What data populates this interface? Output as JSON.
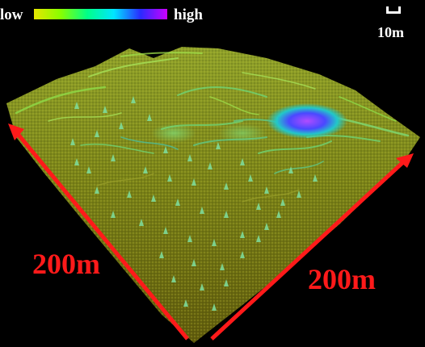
{
  "legend": {
    "low_label": "low",
    "high_label": "high",
    "gradient_colors": [
      "#e6e600",
      "#88ff00",
      "#00ff88",
      "#00e5ff",
      "#2a2aff",
      "#cc00ff"
    ]
  },
  "scale_bar": {
    "label": "10m",
    "icon": "scale-bracket-icon"
  },
  "dimensions": {
    "left_label": "200m",
    "right_label": "200m",
    "arrow_color": "#ff1a1a"
  },
  "terrain": {
    "background": "#000000",
    "ground_color": "#6b6a12",
    "ridge_color": "#7fd64a",
    "peak_color": "#8a2be2"
  }
}
